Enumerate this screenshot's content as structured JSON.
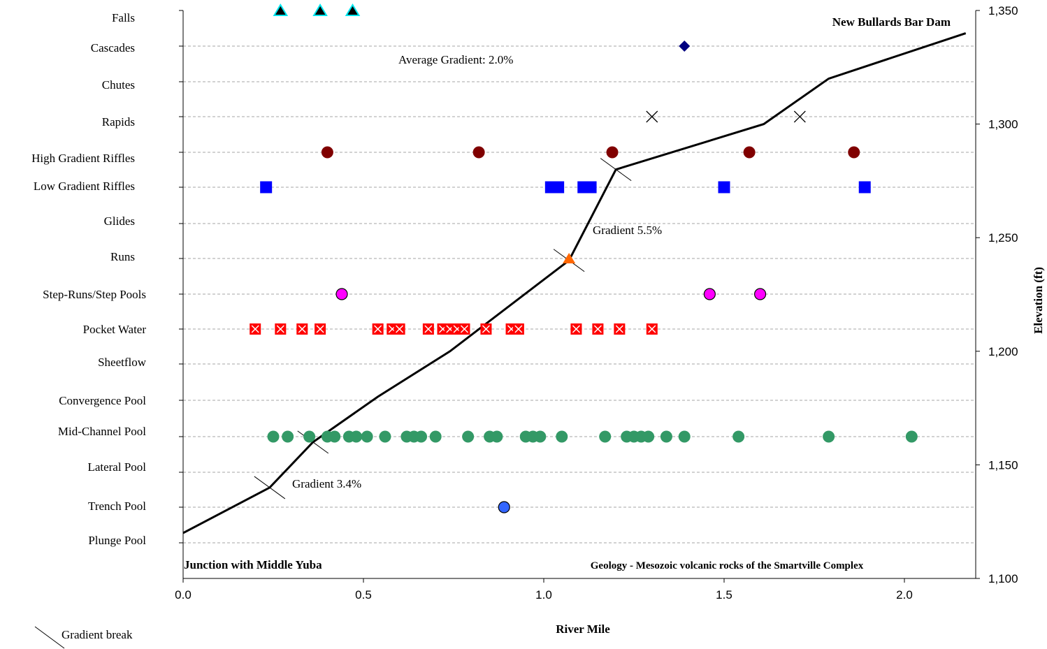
{
  "chart_data": {
    "type": "scatter",
    "xlabel": "River Mile",
    "ylabel": "Elevation (ft)",
    "xlim": [
      0,
      2.175
    ],
    "x_ticks": [
      "0.0",
      "0.5",
      "1.0",
      "1.5",
      "2.0"
    ],
    "x_tick_values": [
      0,
      0.5,
      1.0,
      1.5,
      2.0
    ],
    "y_right_lim": [
      1100,
      1350
    ],
    "y_right_ticks": [
      "1,100",
      "1,150",
      "1,200",
      "1,250",
      "1,300",
      "1,350"
    ],
    "y_right_tick_values": [
      1100,
      1150,
      1200,
      1250,
      1300,
      1350
    ],
    "grid": "horizontal dashed at habitat categories",
    "categories": [
      "Falls",
      "Cascades",
      "Chutes",
      "Rapids",
      "High Gradient Riffles",
      "Low Gradient Riffles",
      "Glides",
      "Runs",
      "Step-Runs/Step Pools",
      "Pocket Water",
      "Sheetflow",
      "Convergence Pool",
      "Mid-Channel Pool",
      "Lateral Pool",
      "Trench Pool",
      "Plunge Pool"
    ],
    "habitat_series": [
      {
        "category": "Falls",
        "marker": "triangle-cyan-edge",
        "color": "#000000",
        "x": [
          0.27,
          0.38,
          0.47
        ]
      },
      {
        "category": "Cascades",
        "marker": "diamond",
        "color": "#000080",
        "x": [
          1.39
        ]
      },
      {
        "category": "Rapids",
        "marker": "x",
        "color": "#000000",
        "x": [
          1.3,
          1.71
        ]
      },
      {
        "category": "High Gradient Riffles",
        "marker": "circle",
        "color": "#800000",
        "x": [
          0.4,
          0.82,
          1.19,
          1.57,
          1.86
        ]
      },
      {
        "category": "Low Gradient Riffles",
        "marker": "square",
        "color": "#0000ff",
        "x": [
          0.23,
          1.02,
          1.04,
          1.11,
          1.13,
          1.5,
          1.89
        ]
      },
      {
        "category": "Runs",
        "marker": "triangle",
        "color": "#ff6600",
        "x": [
          1.07
        ]
      },
      {
        "category": "Step-Runs/Step Pools",
        "marker": "circle-outlined",
        "color": "#ff00ff",
        "x": [
          0.44,
          1.46,
          1.6
        ]
      },
      {
        "category": "Pocket Water",
        "marker": "square-x",
        "color": "#ff0000",
        "x": [
          0.2,
          0.27,
          0.33,
          0.38,
          0.54,
          0.58,
          0.6,
          0.68,
          0.72,
          0.74,
          0.76,
          0.78,
          0.84,
          0.91,
          0.93,
          1.09,
          1.15,
          1.21,
          1.3
        ]
      },
      {
        "category": "Mid-Channel Pool",
        "marker": "circle",
        "color": "#339966",
        "x": [
          0.25,
          0.29,
          0.35,
          0.4,
          0.42,
          0.46,
          0.48,
          0.51,
          0.56,
          0.62,
          0.64,
          0.66,
          0.7,
          0.79,
          0.85,
          0.87,
          0.95,
          0.97,
          0.99,
          1.05,
          1.17,
          1.23,
          1.25,
          1.27,
          1.29,
          1.34,
          1.39,
          1.54,
          1.79,
          2.02
        ]
      },
      {
        "category": "Trench Pool",
        "marker": "circle-outlined",
        "color": "#3366ff",
        "x": [
          0.89
        ]
      }
    ],
    "elevation_profile": {
      "x": [
        0.0,
        0.24,
        0.36,
        0.54,
        0.74,
        1.07,
        1.2,
        1.61,
        1.79,
        2.17
      ],
      "y": [
        1120,
        1140,
        1160,
        1180,
        1200,
        1240,
        1280,
        1300,
        1320,
        1340
      ]
    },
    "gradient_breaks": [
      {
        "x": 0.24,
        "y": 1140
      },
      {
        "x": 0.36,
        "y": 1160
      },
      {
        "x": 1.07,
        "y": 1240
      },
      {
        "x": 1.2,
        "y": 1280
      }
    ],
    "annotations": {
      "top_right": "New Bullards Bar Dam",
      "average_gradient": "Average Gradient:   2.0%",
      "gradient_upper": "Gradient 5.5%",
      "gradient_lower": "Gradient 3.4%",
      "bottom_left": "Junction with Middle  Yuba",
      "geology": "Geology - Mesozoic volcanic rocks of the Smartville Complex"
    },
    "legend": {
      "label": "Gradient break",
      "placement": "bottom-left"
    }
  }
}
